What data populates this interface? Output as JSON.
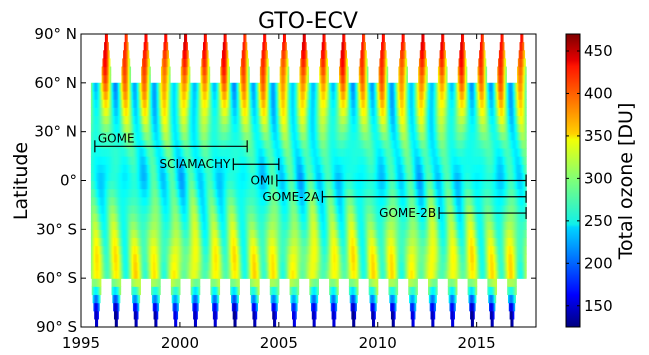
{
  "chart_data": {
    "type": "heatmap",
    "title": "GTO-ECV",
    "xlabel": "",
    "ylabel": "Latitude",
    "colorbar_label": "Total ozone [DU]",
    "xlim": [
      1995,
      2018
    ],
    "ylim": [
      -90,
      90
    ],
    "x_ticks": [
      1995,
      2000,
      2005,
      2010,
      2015
    ],
    "x_tick_labels": [
      "1995",
      "2000",
      "2005",
      "2010",
      "2015"
    ],
    "y_ticks": [
      90,
      60,
      30,
      0,
      -30,
      -60,
      -90
    ],
    "y_tick_labels": [
      "90° N",
      "60° N",
      "30° N",
      "0°",
      "30° S",
      "60° S",
      "90° S"
    ],
    "color_range": [
      125,
      470
    ],
    "colorbar_ticks": [
      150,
      200,
      250,
      300,
      350,
      400,
      450
    ],
    "colorbar_tick_labels": [
      "150",
      "200",
      "250",
      "300",
      "350",
      "400",
      "450"
    ],
    "colormap": "jet",
    "data_start": 1995.5,
    "data_end": 2017.5,
    "instruments": [
      {
        "name": "GOME",
        "start": 1995.7,
        "end": 2003.4,
        "lat": 21
      },
      {
        "name": "SCIAMACHY",
        "start": 2002.7,
        "end": 2005.0,
        "lat": 10
      },
      {
        "name": "OMI",
        "start": 2004.9,
        "end": 2017.5,
        "lat": 0
      },
      {
        "name": "GOME-2A",
        "start": 2007.2,
        "end": 2017.5,
        "lat": -10
      },
      {
        "name": "GOME-2B",
        "start": 2013.1,
        "end": 2017.5,
        "lat": -20
      }
    ]
  }
}
